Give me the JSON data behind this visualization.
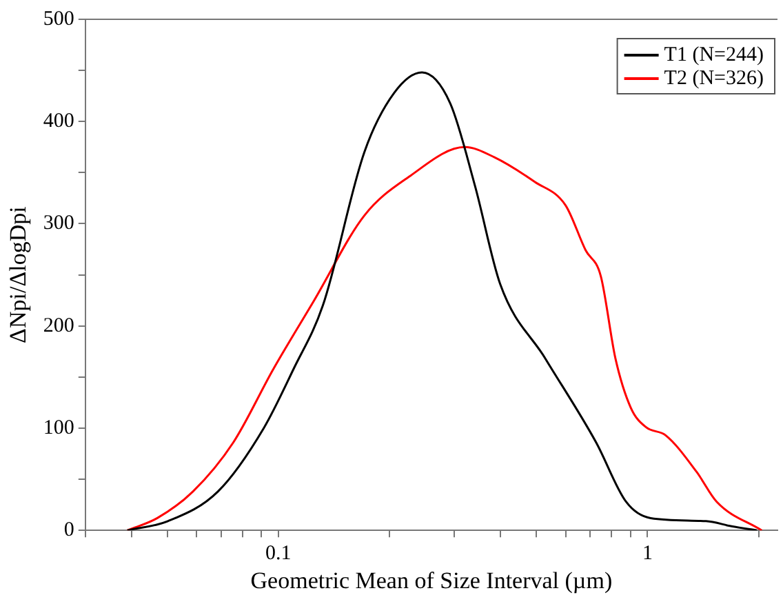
{
  "chart_data": {
    "type": "line",
    "xlabel": "Geometric Mean of Size Interval (µm)",
    "ylabel": "ΔNpi/ΔlogDpi",
    "log": "x",
    "xlim": [
      0.03,
      2.25
    ],
    "ylim": [
      0,
      500
    ],
    "xticks": [
      {
        "value": 0.03,
        "label": null
      },
      {
        "value": 0.04,
        "label": null
      },
      {
        "value": 0.05,
        "label": null
      },
      {
        "value": 0.06,
        "label": null
      },
      {
        "value": 0.07,
        "label": null
      },
      {
        "value": 0.08,
        "label": null
      },
      {
        "value": 0.09,
        "label": null
      },
      0.1,
      {
        "value": 0.2,
        "label": null
      },
      {
        "value": 0.3,
        "label": null
      },
      {
        "value": 0.4,
        "label": null
      },
      {
        "value": 0.5,
        "label": null
      },
      {
        "value": 0.6,
        "label": null
      },
      {
        "value": 0.7,
        "label": null
      },
      {
        "value": 0.8,
        "label": null
      },
      {
        "value": 0.9,
        "label": null
      },
      1,
      {
        "value": 2,
        "label": null
      }
    ],
    "yticks": [
      0,
      {
        "value": 50,
        "label": null
      },
      100,
      {
        "value": 150,
        "label": null
      },
      200,
      {
        "value": 250,
        "label": null
      },
      300,
      {
        "value": 350,
        "label": null
      },
      400,
      {
        "value": 450,
        "label": null
      },
      500
    ],
    "grid": false,
    "legend": "top right",
    "marker": "none",
    "line_style": "solid",
    "series": [
      {
        "name": "T1 (N=244)",
        "color": "#000000",
        "x": [
          0.039,
          0.0502,
          0.0686,
          0.0913,
          0.11,
          0.132,
          0.171,
          0.206,
          0.245,
          0.292,
          0.341,
          0.399,
          0.529,
          0.726,
          0.875,
          1.02,
          1.44,
          1.69,
          1.98
        ],
        "values": [
          0,
          9,
          38,
          100,
          158,
          220,
          370,
          428,
          448,
          418,
          337,
          241,
          168,
          86,
          28,
          12,
          9,
          4,
          0
        ]
      },
      {
        "name": "T2 (N=326)",
        "color": "#ff0000",
        "x": [
          0.039,
          0.047,
          0.0587,
          0.0755,
          0.097,
          0.125,
          0.171,
          0.226,
          0.32,
          0.385,
          0.495,
          0.6,
          0.68,
          0.747,
          0.819,
          0.901,
          0.99,
          1.12,
          1.36,
          1.54,
          2.04
        ],
        "values": [
          0,
          12,
          38,
          86,
          158,
          225,
          308,
          346,
          375,
          365,
          341,
          318,
          274,
          249,
          168,
          120,
          101,
          93,
          57,
          28,
          0
        ]
      }
    ]
  }
}
